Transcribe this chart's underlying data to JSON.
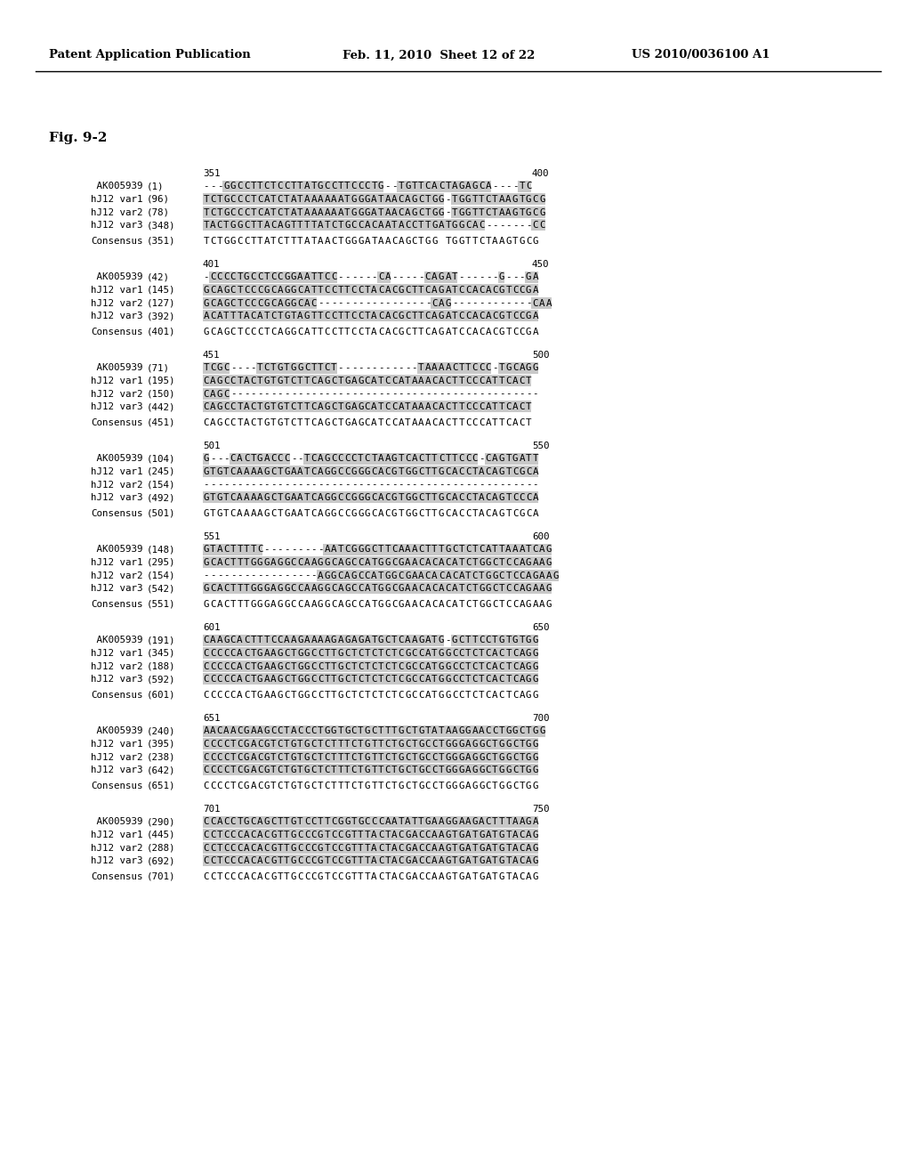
{
  "header_left": "Patent Application Publication",
  "header_mid": "Feb. 11, 2010  Sheet 12 of 22",
  "header_right": "US 2010/0036100 A1",
  "fig_label": "Fig. 9-2",
  "blocks": [
    {
      "ruler_left": "351",
      "ruler_right": "400",
      "rows": [
        {
          "label": " AK005939",
          "num": "(1)",
          "seq": "---GGCCTTCTCCTTATGCCTTCCCTG--TGTTCACTAGAGCA----TC"
        },
        {
          "label": "hJ12 var1",
          "num": "(96)",
          "seq": "TCTGCCCTCATCTATAAAAAATGGGATAACAGCTGG-TGGTTCTAAGTGCG"
        },
        {
          "label": "hJ12 var2",
          "num": "(78)",
          "seq": "TCTGCCCTCATCTATAAAAAATGGGATAACAGCTGG-TGGTTCTAAGTGCG"
        },
        {
          "label": "hJ12 var3",
          "num": "(348)",
          "seq": "TACTGGCTTACAGTTTTATCTGCCACAATACCTTGATGGCAC-------CC"
        }
      ],
      "consensus_num": "(351)",
      "consensus_seq": "TCTGGCCTTATCTTTATAACTGGGATAACAGCTGG TGGTTCTAAGTGCG"
    },
    {
      "ruler_left": "401",
      "ruler_right": "450",
      "rows": [
        {
          "label": " AK005939",
          "num": "(42)",
          "seq": "-CCCCTGCCTCCGGAATTCC------CA-----CAGAT------G---GA"
        },
        {
          "label": "hJ12 var1",
          "num": "(145)",
          "seq": "GCAGCTCCCGCAGGCATTCCTTCCTACACGCTTCAGATCCACACGTCCGA"
        },
        {
          "label": "hJ12 var2",
          "num": "(127)",
          "seq": "GCAGCTCCCGCAGGCAC-----------------CAG------------CAA"
        },
        {
          "label": "hJ12 var3",
          "num": "(392)",
          "seq": "ACATTTACATCTGTAGTTCCTTCCTACACGCTTCAGATCCACACGTCCGA"
        }
      ],
      "consensus_num": "(401)",
      "consensus_seq": "GCAGCTCCCTCAGGCATTCCTTCCTACACGCTTCAGATCCACACGTCCGA"
    },
    {
      "ruler_left": "451",
      "ruler_right": "500",
      "rows": [
        {
          "label": " AK005939",
          "num": "(71)",
          "seq": "TCGC----TCTGTGGCTTCT------------TAAAACTTCCC-TGCAGG"
        },
        {
          "label": "hJ12 var1",
          "num": "(195)",
          "seq": "CAGCCTACTGTGTCTTCAGCTGAGCATCCATAAACACTTCCCATTCACT"
        },
        {
          "label": "hJ12 var2",
          "num": "(150)",
          "seq": "CAGC----------------------------------------------"
        },
        {
          "label": "hJ12 var3",
          "num": "(442)",
          "seq": "CAGCCTACTGTGTCTTCAGCTGAGCATCCATAAACACTTCCCATTCACT"
        }
      ],
      "consensus_num": "(451)",
      "consensus_seq": "CAGCCTACTGTGTCTTCAGCTGAGCATCCATAAACACTTCCCATTCACT"
    },
    {
      "ruler_left": "501",
      "ruler_right": "550",
      "rows": [
        {
          "label": " AK005939",
          "num": "(104)",
          "seq": "G---CACTGACCC--TCAGCCCCTCTAAGTCACTTCTTCCC-CAGTGATT"
        },
        {
          "label": "hJ12 var1",
          "num": "(245)",
          "seq": "GTGTCAAAAGCTGAATCAGGCCGGGCACGTGGCTTGCACCTACAGTCGCA"
        },
        {
          "label": "hJ12 var2",
          "num": "(154)",
          "seq": "--------------------------------------------------"
        },
        {
          "label": "hJ12 var3",
          "num": "(492)",
          "seq": "GTGTCAAAAGCTGAATCAGGCCGGGCACGTGGCTTGCACCTACAGTCCCA"
        }
      ],
      "consensus_num": "(501)",
      "consensus_seq": "GTGTCAAAAGCTGAATCAGGCCGGGCACGTGGCTTGCACCTACAGTCGCA"
    },
    {
      "ruler_left": "551",
      "ruler_right": "600",
      "rows": [
        {
          "label": " AK005939",
          "num": "(148)",
          "seq": "GTACTTTTC---------AATCGGGCTTCAAACTTTGCTCTCATTAAATCAG"
        },
        {
          "label": "hJ12 var1",
          "num": "(295)",
          "seq": "GCACTTTGGGAGGCCAAGGCAGCCATGGCGAACACACATCTGGCTCCAGAAG"
        },
        {
          "label": "hJ12 var2",
          "num": "(154)",
          "seq": "-----------------AGGCAGCCATGGCGAACACACATCTGGCTCCAGAAG"
        },
        {
          "label": "hJ12 var3",
          "num": "(542)",
          "seq": "GCACTTTGGGAGGCCAAGGCAGCCATGGCGAACACACATCTGGCTCCAGAAG"
        }
      ],
      "consensus_num": "(551)",
      "consensus_seq": "GCACTTTGGGAGGCCAAGGCAGCCATGGCGAACACACATCTGGCTCCAGAAG"
    },
    {
      "ruler_left": "601",
      "ruler_right": "650",
      "rows": [
        {
          "label": " AK005939",
          "num": "(191)",
          "seq": "CAAGCACTTTCCAAGAAAAGAGAGATGCTCAAGATG-GCTTCCTGTGTGG"
        },
        {
          "label": "hJ12 var1",
          "num": "(345)",
          "seq": "CCCCCACTGAAGCTGGCCTTGCTCTCTCTCGCCATGGCCTCTCACTCAGG"
        },
        {
          "label": "hJ12 var2",
          "num": "(188)",
          "seq": "CCCCCACTGAAGCTGGCCTTGCTCTCTCTCGCCATGGCCTCTCACTCAGG"
        },
        {
          "label": "hJ12 var3",
          "num": "(592)",
          "seq": "CCCCCACTGAAGCTGGCCTTGCTCTCTCTCGCCATGGCCTCTCACTCAGG"
        }
      ],
      "consensus_num": "(601)",
      "consensus_seq": "CCCCCACTGAAGCTGGCCTTGCTCTCTCTCGCCATGGCCTCTCACTCAGG"
    },
    {
      "ruler_left": "651",
      "ruler_right": "700",
      "rows": [
        {
          "label": " AK005939",
          "num": "(240)",
          "seq": "AACAACGAAGCCTACCCTGGTGCTGCTTTGCTGTATAAGGAACCTGGCTGG"
        },
        {
          "label": "hJ12 var1",
          "num": "(395)",
          "seq": "CCCCTCGACGTCTGTGCTCTTTCTGTTCTGCTGCCTGGGAGGCTGGCTGG"
        },
        {
          "label": "hJ12 var2",
          "num": "(238)",
          "seq": "CCCCTCGACGTCTGTGCTCTTTCTGTTCTGCTGCCTGGGAGGCTGGCTGG"
        },
        {
          "label": "hJ12 var3",
          "num": "(642)",
          "seq": "CCCCTCGACGTCTGTGCTCTTTCTGTTCTGCTGCCTGGGAGGCTGGCTGG"
        }
      ],
      "consensus_num": "(651)",
      "consensus_seq": "CCCCTCGACGTCTGTGCTCTTTCTGTTCTGCTGCCTGGGAGGCTGGCTGG"
    },
    {
      "ruler_left": "701",
      "ruler_right": "750",
      "rows": [
        {
          "label": " AK005939",
          "num": "(290)",
          "seq": "CCACCTGCAGCTTGTCCTTCGGTGCCCAATATTGAAGGAAGACTTTAAGA"
        },
        {
          "label": "hJ12 var1",
          "num": "(445)",
          "seq": "CCTCCCACACGTTGCCCGTCCGTTTACTACGACCAAGTGATGATGTACAG"
        },
        {
          "label": "hJ12 var2",
          "num": "(288)",
          "seq": "CCTCCCACACGTTGCCCGTCCGTTTACTACGACCAAGTGATGATGTACAG"
        },
        {
          "label": "hJ12 var3",
          "num": "(692)",
          "seq": "CCTCCCACACGTTGCCCGTCCGTTTACTACGACCAAGTGATGATGTACAG"
        }
      ],
      "consensus_num": "(701)",
      "consensus_seq": "CCTCCCACACGTTGCCCGTCCGTTTACTACGACCAAGTGATGATGTACAG"
    }
  ]
}
